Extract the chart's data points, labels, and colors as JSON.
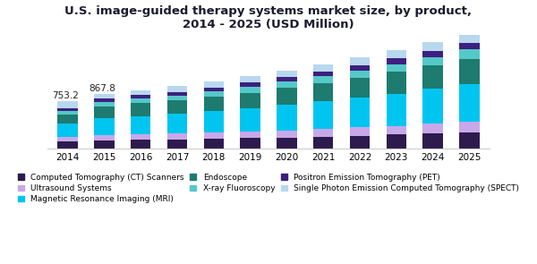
{
  "title": "U.S. image-guided therapy systems market size, by product,\n2014 - 2025 (USD Million)",
  "years": [
    2014,
    2015,
    2016,
    2017,
    2018,
    2019,
    2020,
    2021,
    2022,
    2023,
    2024,
    2025
  ],
  "segment_labels": [
    "Computed Tomography (CT) Scanners",
    "Ultrasound Systems",
    "Magnetic Resonance Imaging (MRI)",
    "Endoscope",
    "X-ray Fluoroscopy",
    "Positron Emission Tomography (PET)",
    "Single Photon Emission Computed Tomography (SPECT)"
  ],
  "colors": [
    "#2d1b4e",
    "#c8a8e8",
    "#00c5f0",
    "#1e7b70",
    "#55c8c8",
    "#3d2080",
    "#b8d8f0"
  ],
  "values": [
    [
      118,
      136,
      143,
      150,
      160,
      170,
      183,
      196,
      210,
      226,
      244,
      262
    ],
    [
      72,
      82,
      86,
      90,
      97,
      104,
      112,
      120,
      130,
      140,
      151,
      163
    ],
    [
      210,
      270,
      292,
      312,
      338,
      366,
      398,
      432,
      468,
      508,
      552,
      600
    ],
    [
      145,
      185,
      200,
      213,
      230,
      248,
      268,
      290,
      313,
      339,
      367,
      397
    ],
    [
      60,
      70,
      75,
      80,
      86,
      92,
      99,
      107,
      115,
      125,
      135,
      146
    ],
    [
      40,
      48,
      52,
      56,
      60,
      65,
      70,
      75,
      81,
      88,
      95,
      103
    ],
    [
      108,
      77,
      82,
      87,
      93,
      99,
      107,
      115,
      124,
      134,
      145,
      157
    ]
  ],
  "annot_indices": [
    0,
    1
  ],
  "annot_texts": [
    "753.2",
    "867.8"
  ],
  "ylim": [
    0,
    1800
  ],
  "bar_width": 0.55,
  "title_fontsize": 9.5,
  "title_color": "#1a1a2e",
  "legend_fontsize": 6.5,
  "tick_fontsize": 7.5,
  "annot_fontsize": 7.5,
  "bg_color": "#ffffff",
  "spine_color": "#cccccc"
}
